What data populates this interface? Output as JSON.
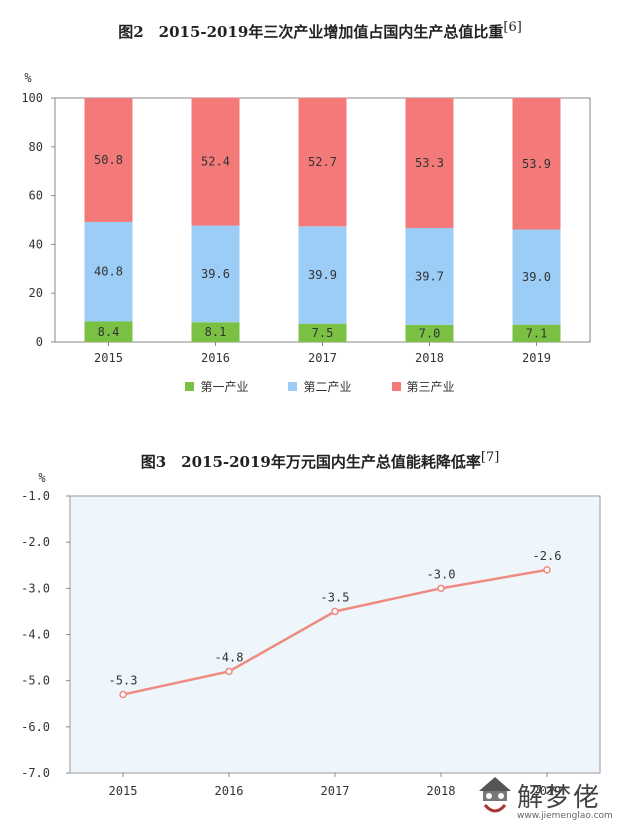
{
  "charts": {
    "chart1_title": "图2　2015-2019年三次产业增加值占国内生产总值比重",
    "chart1_ref": "[6]",
    "chart2_title": "图3　2015-2019年万元国内生产总值能耗降低率",
    "chart2_ref": "[7]"
  },
  "chart_data": [
    {
      "type": "bar",
      "stacked": true,
      "title": "图2　2015-2019年三次产业增加值占国内生产总值比重",
      "ylabel": "%",
      "ylim": [
        0,
        100
      ],
      "yticks": [
        0,
        20,
        40,
        60,
        80,
        100
      ],
      "categories": [
        "2015",
        "2016",
        "2017",
        "2018",
        "2019"
      ],
      "series": [
        {
          "name": "第一产业",
          "color": "#7ac143",
          "values": [
            8.4,
            8.1,
            7.5,
            7.0,
            7.1
          ],
          "labels": [
            "8.4",
            "8.1",
            "7.5",
            "7.0",
            "7.1"
          ]
        },
        {
          "name": "第二产业",
          "color": "#9ccdf6",
          "values": [
            40.8,
            39.6,
            39.9,
            39.7,
            39.0
          ],
          "labels": [
            "40.8",
            "39.6",
            "39.9",
            "39.7",
            "39.0"
          ]
        },
        {
          "name": "第三产业",
          "color": "#f47a7a",
          "values": [
            50.8,
            52.4,
            52.7,
            53.3,
            53.9
          ],
          "labels": [
            "50.8",
            "52.4",
            "52.7",
            "53.3",
            "53.9"
          ]
        }
      ],
      "legend_position": "bottom"
    },
    {
      "type": "line",
      "title": "图3　2015-2019年万元国内生产总值能耗降低率",
      "ylabel": "%",
      "ylim": [
        -7.0,
        -1.0
      ],
      "yticks": [
        "-1.0",
        "-2.0",
        "-3.0",
        "-4.0",
        "-5.0",
        "-6.0",
        "-7.0"
      ],
      "categories": [
        "2015",
        "2016",
        "2017",
        "2018",
        "2019"
      ],
      "series": [
        {
          "color": "#f08a80",
          "values": [
            -5.3,
            -4.8,
            -3.5,
            -3.0,
            -2.6
          ],
          "labels": [
            "-5.3",
            "-4.8",
            "-3.5",
            "-3.0",
            "-2.6"
          ]
        }
      ],
      "background": "#eef6fb",
      "grid": false
    }
  ],
  "watermark": {
    "text": "解梦佬",
    "url": "www.jiemenglao.com"
  }
}
